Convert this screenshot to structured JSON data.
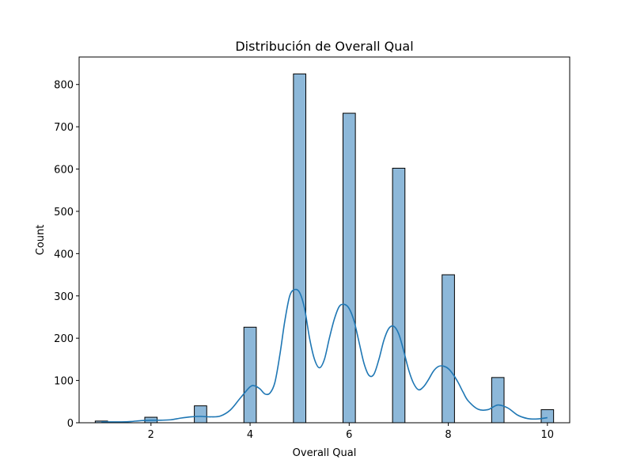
{
  "chart_data": {
    "type": "bar",
    "title": "Distribución de Overall Qual",
    "xlabel": "Overall Qual",
    "ylabel": "Count",
    "xlim": [
      0.55,
      10.45
    ],
    "ylim": [
      0,
      865
    ],
    "xticks": [
      2,
      4,
      6,
      8,
      10
    ],
    "yticks": [
      0,
      100,
      200,
      300,
      400,
      500,
      600,
      700,
      800
    ],
    "bin_width": 0.25,
    "bars": [
      {
        "x": 1,
        "value": 4
      },
      {
        "x": 2,
        "value": 13
      },
      {
        "x": 3,
        "value": 40
      },
      {
        "x": 4,
        "value": 226
      },
      {
        "x": 5,
        "value": 825
      },
      {
        "x": 6,
        "value": 732
      },
      {
        "x": 7,
        "value": 602
      },
      {
        "x": 8,
        "value": 350
      },
      {
        "x": 9,
        "value": 107
      },
      {
        "x": 10,
        "value": 31
      }
    ],
    "kde": {
      "x": [
        1.0,
        1.2,
        1.4,
        1.6,
        1.8,
        2.0,
        2.2,
        2.4,
        2.6,
        2.8,
        3.0,
        3.2,
        3.4,
        3.6,
        3.8,
        4.0,
        4.1,
        4.2,
        4.3,
        4.4,
        4.5,
        4.6,
        4.7,
        4.8,
        4.9,
        5.0,
        5.1,
        5.2,
        5.3,
        5.4,
        5.5,
        5.6,
        5.7,
        5.8,
        5.9,
        6.0,
        6.1,
        6.2,
        6.3,
        6.4,
        6.5,
        6.6,
        6.7,
        6.8,
        6.9,
        7.0,
        7.1,
        7.2,
        7.3,
        7.4,
        7.5,
        7.6,
        7.7,
        7.8,
        7.9,
        8.0,
        8.1,
        8.2,
        8.3,
        8.4,
        8.6,
        8.8,
        9.0,
        9.2,
        9.4,
        9.6,
        9.8,
        10.0
      ],
      "y": [
        2,
        2,
        2,
        3,
        5,
        6,
        6,
        7,
        11,
        14,
        15,
        14,
        16,
        30,
        58,
        85,
        87,
        80,
        68,
        70,
        95,
        160,
        240,
        300,
        315,
        308,
        270,
        200,
        150,
        130,
        150,
        200,
        245,
        275,
        280,
        270,
        240,
        190,
        140,
        112,
        115,
        150,
        195,
        223,
        228,
        210,
        170,
        125,
        93,
        78,
        85,
        102,
        122,
        133,
        134,
        128,
        114,
        95,
        72,
        52,
        32,
        31,
        42,
        35,
        18,
        10,
        9,
        12
      ]
    },
    "bar_fill": "#8db8d9",
    "bar_edge": "#000000",
    "line_color": "#1f77b4",
    "grid": false
  }
}
